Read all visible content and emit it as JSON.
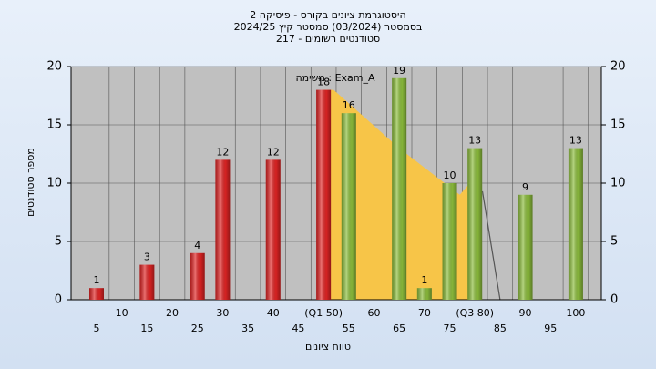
{
  "chart_data": {
    "type": "bar",
    "title": "היסטוגרמת ציונים בקורס - פיסיקה 2",
    "subtitle": "בסמסטר  (03/2024)  סמסטר קיץ 2024/25",
    "subtitle2": "סטודנטים רשומים - 217",
    "annotation": "משימה : Exam_A",
    "x_label": "טווח ציונים",
    "y_label": "מספר סטודנטים",
    "categories": [
      "5",
      "10",
      "15",
      "20",
      "25",
      "30",
      "35",
      "40",
      "45",
      "(Q1 50)",
      "55",
      "60",
      "65",
      "70",
      "75",
      "(Q3 80)",
      "85",
      "90",
      "95",
      "100"
    ],
    "values": [
      1,
      null,
      3,
      null,
      4,
      12,
      null,
      12,
      null,
      18,
      16,
      null,
      19,
      1,
      10,
      13,
      null,
      9,
      null,
      13
    ],
    "colors": [
      "#e02424",
      "#e02424",
      "#e02424",
      "#e02424",
      "#e02424",
      "#e02424",
      "#e02424",
      "#e02424",
      "#e02424",
      "#e02424",
      "#8cbd3c",
      "#8cbd3c",
      "#8cbd3c",
      "#8cbd3c",
      "#8cbd3c",
      "#8cbd3c",
      "#8cbd3c",
      "#8cbd3c",
      "#8cbd3c",
      "#8cbd3c"
    ],
    "overlays": [
      {
        "type": "area",
        "color": "#f7c548",
        "x": [
          49,
          50,
          52,
          65,
          77,
          79,
          79
        ],
        "values": [
          0,
          18,
          18,
          13,
          9,
          10,
          0
        ]
      },
      {
        "type": "line",
        "color": "#555555",
        "x": [
          81.5,
          85
        ],
        "values": [
          9.3,
          0
        ]
      }
    ],
    "ylim": [
      0,
      20
    ],
    "yticks": [
      0,
      5,
      10,
      15,
      20
    ],
    "y2lim": [
      0,
      20
    ],
    "y2ticks": [
      0,
      5,
      10,
      15,
      20
    ],
    "grid": true
  }
}
